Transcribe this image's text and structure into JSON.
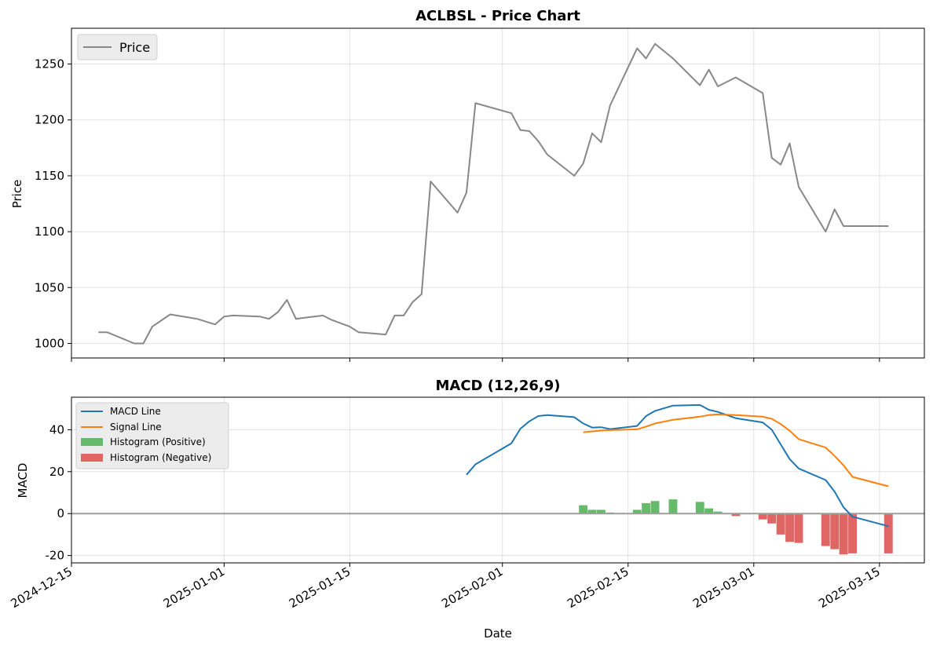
{
  "chart_data": [
    {
      "type": "line",
      "title": "ACLBSL - Price Chart",
      "xlabel": "",
      "ylabel": "Price",
      "xlim": [
        "2024-12-15",
        "2025-03-20"
      ],
      "ylim": [
        987,
        1282
      ],
      "yticks": [
        1000,
        1050,
        1100,
        1150,
        1200,
        1250
      ],
      "grid": true,
      "legend": {
        "placement": "top-left",
        "entries": [
          "Price"
        ]
      },
      "series": [
        {
          "name": "Price",
          "color": "#888888",
          "x": [
            "2024-12-18",
            "2024-12-19",
            "2024-12-22",
            "2024-12-23",
            "2024-12-24",
            "2024-12-26",
            "2024-12-29",
            "2024-12-31",
            "2025-01-01",
            "2025-01-02",
            "2025-01-05",
            "2025-01-06",
            "2025-01-07",
            "2025-01-08",
            "2025-01-09",
            "2025-01-12",
            "2025-01-13",
            "2025-01-15",
            "2025-01-16",
            "2025-01-19",
            "2025-01-20",
            "2025-01-21",
            "2025-01-22",
            "2025-01-23",
            "2025-01-24",
            "2025-01-27",
            "2025-01-28",
            "2025-01-29",
            "2025-02-02",
            "2025-02-03",
            "2025-02-04",
            "2025-02-05",
            "2025-02-06",
            "2025-02-09",
            "2025-02-10",
            "2025-02-11",
            "2025-02-12",
            "2025-02-13",
            "2025-02-16",
            "2025-02-17",
            "2025-02-18",
            "2025-02-20",
            "2025-02-23",
            "2025-02-24",
            "2025-02-25",
            "2025-02-27",
            "2025-03-02",
            "2025-03-03",
            "2025-03-04",
            "2025-03-05",
            "2025-03-06",
            "2025-03-09",
            "2025-03-10",
            "2025-03-11",
            "2025-03-16"
          ],
          "y": [
            1010,
            1010,
            1000,
            1000,
            1015,
            1026,
            1022,
            1017,
            1024,
            1025,
            1024,
            1022,
            1028,
            1039,
            1022,
            1025,
            1021,
            1015,
            1010,
            1008,
            1025,
            1025,
            1037,
            1044,
            1145,
            1117,
            1135,
            1215,
            1206,
            1191,
            1190,
            1181,
            1169,
            1150,
            1161,
            1188,
            1180,
            1213,
            1264,
            1255,
            1268,
            1255,
            1231,
            1245,
            1230,
            1238,
            1224,
            1166,
            1160,
            1179,
            1140,
            1100,
            1120,
            1105,
            1105
          ]
        }
      ]
    },
    {
      "type": "line",
      "title": "MACD (12,26,9)",
      "xlabel": "Date",
      "ylabel": "MACD",
      "xlim": [
        "2024-12-15",
        "2025-03-20"
      ],
      "ylim": [
        -23.5,
        55.5
      ],
      "yticks": [
        -20,
        0,
        20,
        40
      ],
      "xticks": [
        "2024-12-15",
        "2025-01-01",
        "2025-01-15",
        "2025-02-01",
        "2025-02-15",
        "2025-03-01",
        "2025-03-15"
      ],
      "grid": true,
      "legend": {
        "placement": "top-left",
        "entries": [
          "MACD Line",
          "Signal Line",
          "Histogram (Positive)",
          "Histogram (Negative)"
        ]
      },
      "series": [
        {
          "name": "MACD Line",
          "color": "#1f77b4",
          "x": [
            "2025-01-28",
            "2025-01-29",
            "2025-02-02",
            "2025-02-03",
            "2025-02-04",
            "2025-02-05",
            "2025-02-06",
            "2025-02-09",
            "2025-02-10",
            "2025-02-11",
            "2025-02-12",
            "2025-02-13",
            "2025-02-16",
            "2025-02-17",
            "2025-02-18",
            "2025-02-20",
            "2025-02-23",
            "2025-02-24",
            "2025-02-25",
            "2025-02-27",
            "2025-03-02",
            "2025-03-03",
            "2025-03-04",
            "2025-03-05",
            "2025-03-06",
            "2025-03-09",
            "2025-03-10",
            "2025-03-11",
            "2025-03-12",
            "2025-03-16"
          ],
          "y": [
            18.5,
            23.5,
            33.5,
            40.5,
            44,
            46.5,
            47,
            46,
            43,
            41,
            41.2,
            40.3,
            41.8,
            46.5,
            49,
            51.5,
            51.8,
            49.5,
            48.5,
            45.5,
            43.5,
            40,
            33,
            26,
            21.5,
            16,
            10.5,
            3,
            -1.5,
            -6
          ]
        },
        {
          "name": "Signal Line",
          "color": "#ff7f0e",
          "x": [
            "2025-02-10",
            "2025-02-11",
            "2025-02-12",
            "2025-02-13",
            "2025-02-16",
            "2025-02-17",
            "2025-02-18",
            "2025-02-20",
            "2025-02-23",
            "2025-02-24",
            "2025-02-25",
            "2025-02-27",
            "2025-03-02",
            "2025-03-03",
            "2025-03-04",
            "2025-03-05",
            "2025-03-06",
            "2025-03-09",
            "2025-03-10",
            "2025-03-11",
            "2025-03-12",
            "2025-03-16"
          ],
          "y": [
            38.8,
            39.2,
            39.6,
            39.8,
            40.2,
            41.5,
            43,
            44.7,
            46.2,
            47,
            47.3,
            47,
            46.2,
            45.2,
            42.7,
            39.5,
            35.5,
            31.5,
            27.5,
            23,
            17.5,
            13
          ]
        },
        {
          "name": "Histogram (Positive)",
          "type": "bar",
          "color": "#66bb6a",
          "x": [
            "2025-02-10",
            "2025-02-11",
            "2025-02-12",
            "2025-02-13",
            "2025-02-16",
            "2025-02-17",
            "2025-02-18",
            "2025-02-20",
            "2025-02-23",
            "2025-02-24",
            "2025-02-25"
          ],
          "y": [
            4,
            1.8,
            1.8,
            0.5,
            1.8,
            5,
            6,
            6.8,
            5.6,
            2.5,
            1
          ]
        },
        {
          "name": "Histogram (Negative)",
          "type": "bar",
          "color": "#e06666",
          "x": [
            "2025-02-27",
            "2025-03-02",
            "2025-03-03",
            "2025-03-04",
            "2025-03-05",
            "2025-03-06",
            "2025-03-09",
            "2025-03-10",
            "2025-03-11",
            "2025-03-12",
            "2025-03-16"
          ],
          "y": [
            -1.2,
            -2.8,
            -4.7,
            -10,
            -13.5,
            -14,
            -15.5,
            -17,
            -19.5,
            -19,
            -19
          ]
        }
      ]
    }
  ]
}
